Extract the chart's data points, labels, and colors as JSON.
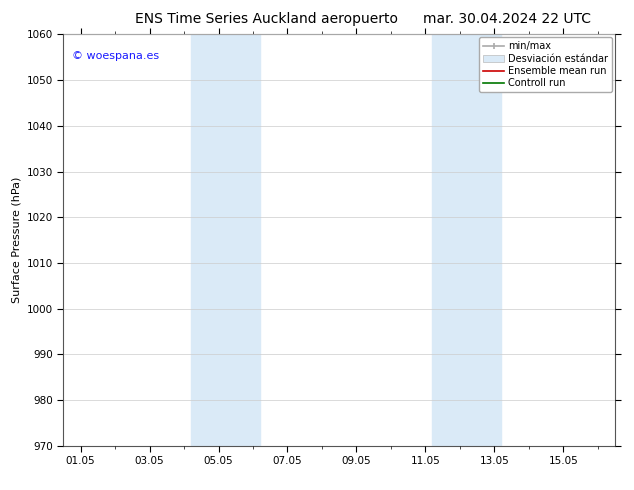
{
  "title_left": "ENS Time Series Auckland aeropuerto",
  "title_right": "mar. 30.04.2024 22 UTC",
  "ylabel": "Surface Pressure (hPa)",
  "ylim": [
    970,
    1060
  ],
  "yticks": [
    970,
    980,
    990,
    1000,
    1010,
    1020,
    1030,
    1040,
    1050,
    1060
  ],
  "xtick_labels": [
    "01.05",
    "03.05",
    "05.05",
    "07.05",
    "09.05",
    "11.05",
    "13.05",
    "15.05"
  ],
  "xtick_positions": [
    0,
    2,
    4,
    6,
    8,
    10,
    12,
    14
  ],
  "xlim": [
    -0.5,
    15.5
  ],
  "shaded_regions": [
    {
      "start": 3.2,
      "end": 5.2,
      "color": "#daeaf7"
    },
    {
      "start": 10.2,
      "end": 12.2,
      "color": "#daeaf7"
    }
  ],
  "watermark_text": "© woespana.es",
  "watermark_color": "#1a1aff",
  "bg_color": "#ffffff",
  "plot_bg_color": "#ffffff",
  "grid_color": "#cccccc",
  "title_fontsize": 10,
  "label_fontsize": 8,
  "tick_fontsize": 7.5,
  "legend_fontsize": 7.0
}
